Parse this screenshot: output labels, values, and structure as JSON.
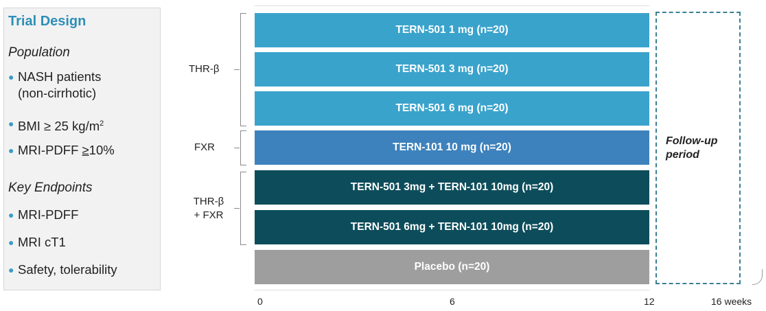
{
  "panel": {
    "title": "Trial Design",
    "population_heading": "Population",
    "population": [
      "NASH patients",
      "(non-cirrhotic)",
      "BMI ≥ 25 kg/m",
      "2",
      "MRI-PDFF ",
      "≥",
      "10%"
    ],
    "endpoints_heading": "Key Endpoints",
    "endpoints": [
      "MRI-PDFF",
      "MRI cT1",
      "Safety, tolerability"
    ]
  },
  "groups": {
    "thr": "THR-β",
    "fxr": "FXR",
    "combo_line1": "THR-β",
    "combo_line2": "+ FXR"
  },
  "arms": [
    {
      "label": "TERN-501 1 mg (n=20)",
      "color": "#3aa3cc"
    },
    {
      "label": "TERN-501 3 mg (n=20)",
      "color": "#3aa3cc"
    },
    {
      "label": "TERN-501 6 mg (n=20)",
      "color": "#3aa3cc"
    },
    {
      "label": "TERN-101 10 mg (n=20)",
      "color": "#3d82bd"
    },
    {
      "label": "TERN-501 3mg + TERN-101 10mg (n=20)",
      "color": "#0d4d5b"
    },
    {
      "label": "TERN-501 6mg + TERN-101 10mg (n=20)",
      "color": "#0d4d5b"
    },
    {
      "label": "Placebo (n=20)",
      "color": "#9e9e9e"
    }
  ],
  "followup": {
    "line1": "Follow-up",
    "line2": "period"
  },
  "axis": {
    "t0": "0",
    "t6": "6",
    "t12": "12",
    "t16": "16 weeks"
  }
}
